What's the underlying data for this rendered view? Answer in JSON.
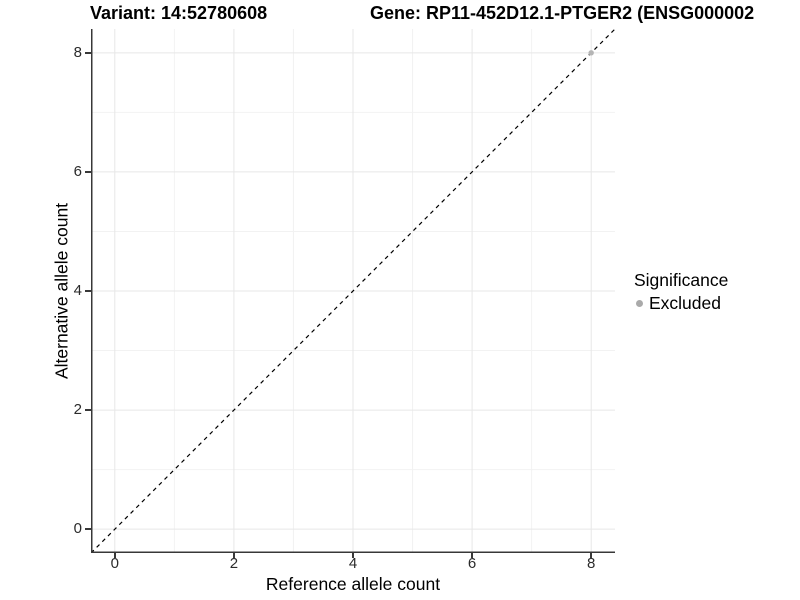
{
  "chart_data": {
    "type": "scatter",
    "title_left": "Variant: 14:52780608",
    "title_right": "Gene: RP11-452D12.1-PTGER2 (ENSG000002",
    "xlabel": "Reference allele count",
    "ylabel": "Alternative allele count",
    "xlim": [
      -0.4,
      8.4
    ],
    "ylim": [
      -0.4,
      8.4
    ],
    "x_ticks": [
      0,
      2,
      4,
      6,
      8
    ],
    "y_ticks": [
      0,
      2,
      4,
      6,
      8
    ],
    "grid": {
      "major": true,
      "minor": true
    },
    "reference_line": {
      "style": "dashed",
      "slope": 1,
      "intercept": 0,
      "note": "y = x identity line"
    },
    "series": [
      {
        "name": "Excluded",
        "points": [
          [
            8,
            8
          ]
        ]
      }
    ],
    "legend": {
      "title": "Significance",
      "position": "right",
      "entries": [
        {
          "label": "Excluded",
          "color": "#aaaaaa"
        }
      ]
    },
    "colors": {
      "grid_major": "#e7e7e7",
      "grid_minor": "#f2f2f2",
      "axis_line": "#383838",
      "reference_line": "#000000",
      "point": "#b5b5b5",
      "legend_dot": "#aaaaaa"
    }
  }
}
